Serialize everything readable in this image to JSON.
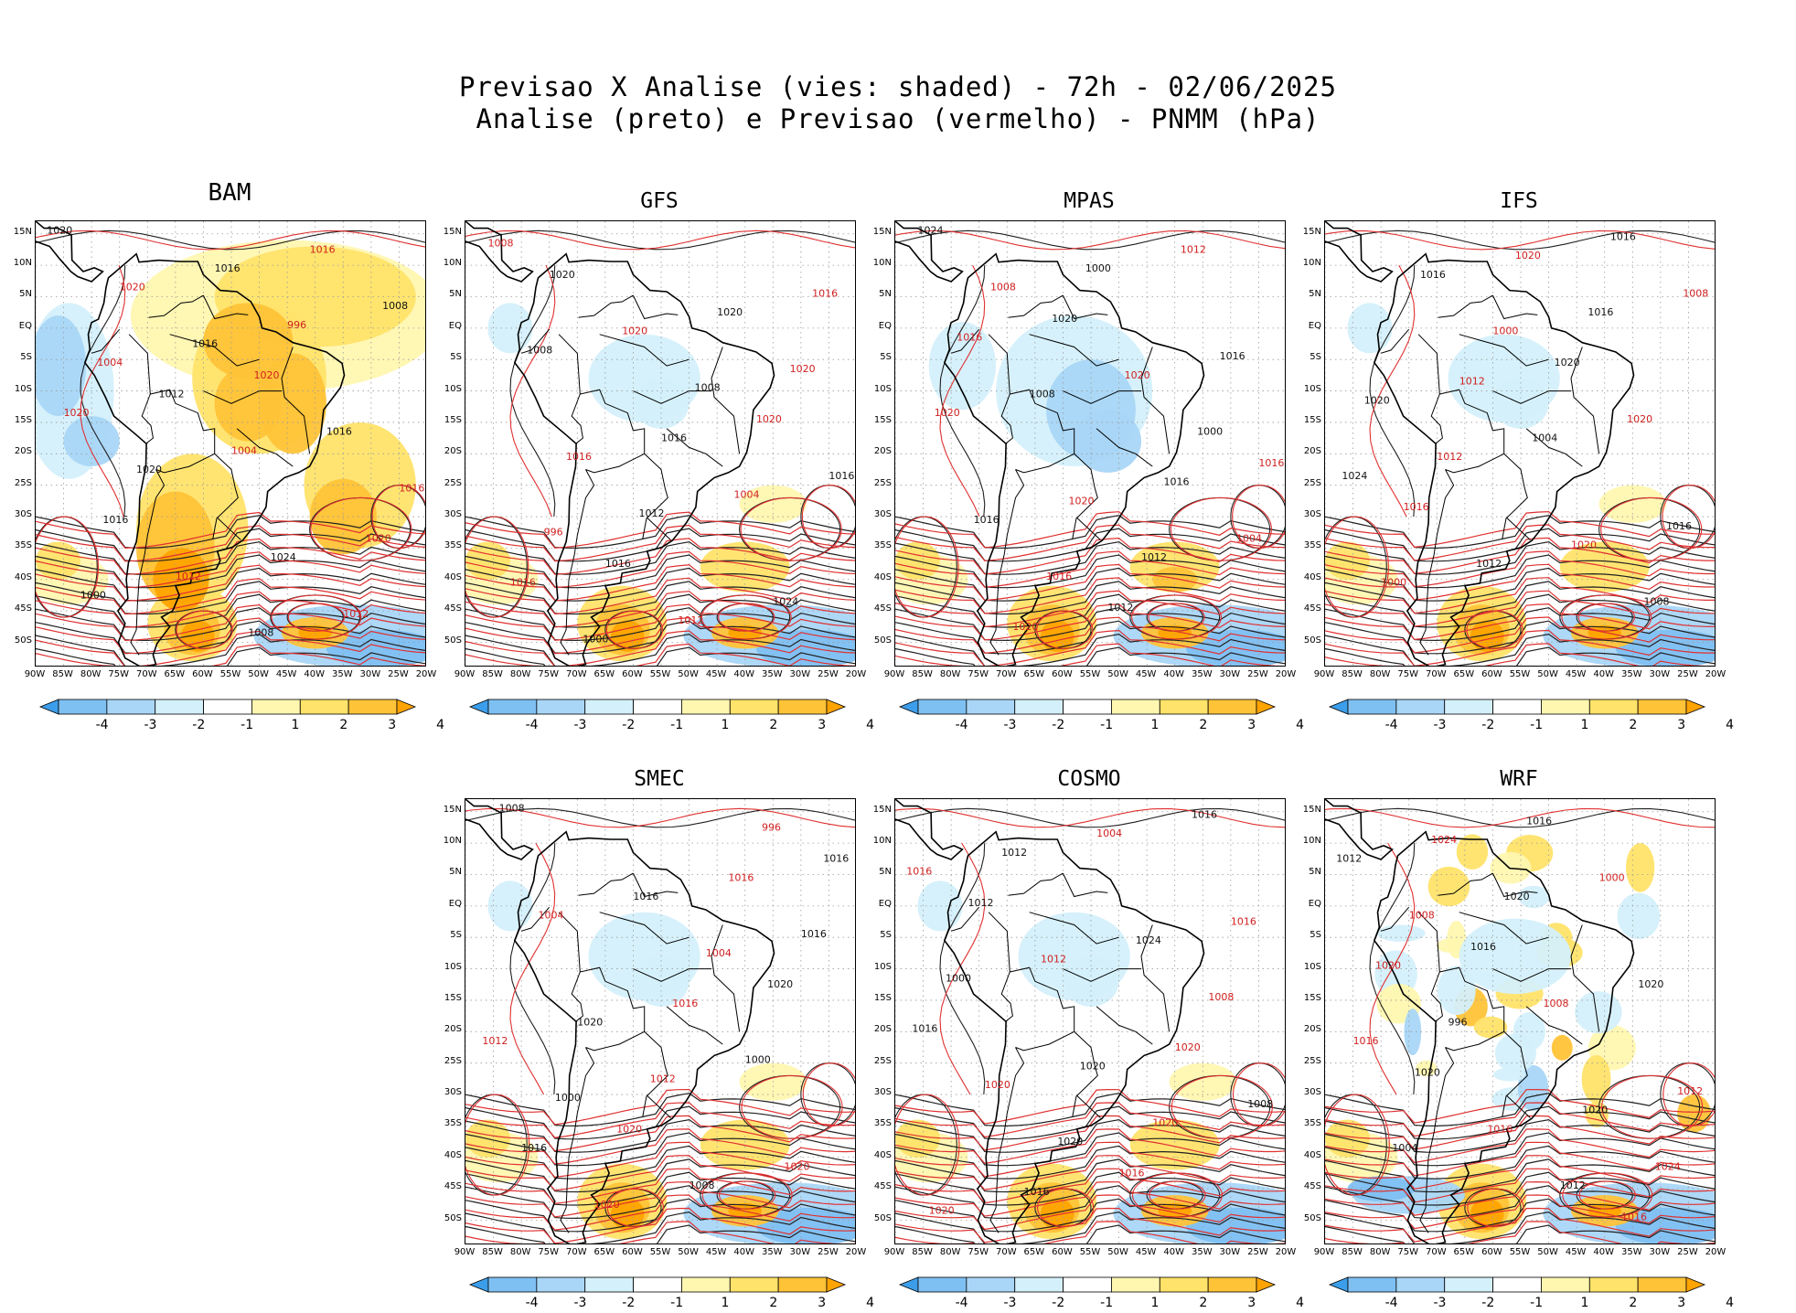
{
  "title_line1": "Previsao X Analise (vies: shaded) - 72h - 02/06/2025",
  "title_line2": "Analise (preto) e Previsao (vermelho) - PNMM (hPa)",
  "lat_labels": [
    "15N",
    "10N",
    "5N",
    "EQ",
    "5S",
    "10S",
    "15S",
    "20S",
    "25S",
    "30S",
    "35S",
    "40S",
    "45S",
    "50S"
  ],
  "lon_labels": [
    "90W",
    "85W",
    "80W",
    "75W",
    "70W",
    "65W",
    "60W",
    "55W",
    "50W",
    "45W",
    "40W",
    "35W",
    "30W",
    "25W",
    "20W"
  ],
  "colorbar": {
    "labels": [
      "-4",
      "-3",
      "-2",
      "-1",
      "1",
      "2",
      "3",
      "4"
    ],
    "colors": [
      "#3c9eea",
      "#7fc0f2",
      "#a9d6f7",
      "#d4f0fb",
      "#ffffff",
      "#fff7b0",
      "#ffe36a",
      "#ffc338",
      "#ffa400"
    ]
  },
  "panels": [
    {
      "name": "BAM",
      "bias": "warm"
    },
    {
      "name": "GFS",
      "bias": "mixed"
    },
    {
      "name": "MPAS",
      "bias": "cool"
    },
    {
      "name": "IFS",
      "bias": "mixed"
    },
    {
      "name": "SMEC",
      "bias": "mixed"
    },
    {
      "name": "COSMO",
      "bias": "mixed"
    },
    {
      "name": "WRF",
      "bias": "noisy"
    }
  ],
  "contour_labels": {
    "BAM": [
      "1020",
      "1020",
      "1016",
      "1016",
      "1012",
      "1020",
      "1016",
      "1020",
      "1024",
      "1020",
      "1016",
      "1012",
      "1008",
      "1004",
      "1000",
      "996",
      "1020",
      "1012",
      "1016",
      "1016",
      "1008",
      "1004"
    ],
    "GFS": [
      "1020",
      "1020",
      "1016",
      "1016",
      "1016",
      "1016",
      "1020",
      "1016",
      "1024",
      "1020",
      "1016",
      "1012",
      "1008",
      "1004",
      "1000",
      "1020",
      "1012",
      "1008",
      "1008",
      "996"
    ],
    "MPAS": [
      "1020",
      "1016",
      "1012",
      "1016",
      "1016",
      "1020",
      "1016",
      "1020",
      "1024",
      "1020",
      "1016",
      "1012",
      "1008",
      "1004",
      "1000",
      "1020",
      "1012",
      "1008",
      "1000",
      "1016"
    ],
    "IFS": [
      "1020",
      "1016",
      "1016",
      "1012",
      "1016",
      "1020",
      "1020",
      "1020",
      "1016",
      "1020",
      "1012",
      "1008",
      "1004",
      "1000",
      "1016",
      "1012",
      "1008",
      "1000",
      "1024"
    ],
    "SMEC": [
      "1020",
      "1020",
      "1016",
      "1016",
      "1016",
      "1016",
      "1020",
      "1020",
      "1016",
      "1012",
      "1008",
      "1004",
      "1000",
      "1020",
      "1016",
      "1012",
      "1008",
      "1004",
      "1000",
      "996"
    ],
    "COSMO": [
      "1016",
      "1016",
      "1012",
      "1020",
      "1016",
      "1016",
      "1020",
      "1020",
      "1024",
      "1020",
      "1016",
      "1012",
      "1008",
      "1004",
      "1000",
      "1020",
      "1012",
      "1008",
      "1020",
      "1016"
    ],
    "WRF": [
      "1020",
      "1016",
      "1016",
      "1012",
      "1016",
      "1020",
      "1020",
      "1024",
      "1020",
      "1016",
      "1012",
      "1008",
      "1004",
      "1000",
      "996",
      "1024",
      "1020",
      "1016",
      "1012",
      "1008"
    ]
  }
}
